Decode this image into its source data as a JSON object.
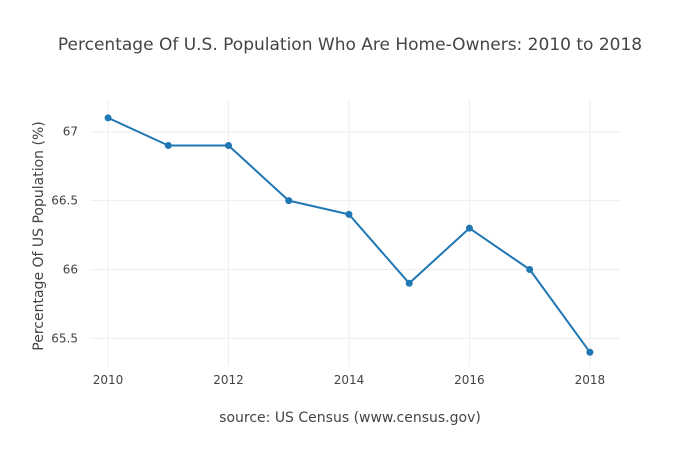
{
  "chart_data": {
    "type": "line",
    "title": "Percentage Of U.S. Population Who Are Home-Owners: 2010 to 2018",
    "xlabel": "source: US Census (www.census.gov)",
    "ylabel": "Percentage Of US Population (%)",
    "x": [
      2010,
      2011,
      2012,
      2013,
      2014,
      2015,
      2016,
      2017,
      2018
    ],
    "series": [
      {
        "values": [
          67.1,
          66.9,
          66.9,
          66.5,
          66.4,
          65.9,
          66.3,
          66.0,
          65.4
        ]
      }
    ],
    "xlim": [
      2009.7,
      2018.5
    ],
    "ylim": [
      65.3,
      67.23
    ],
    "x_ticks": [
      2010,
      2012,
      2014,
      2016,
      2018
    ],
    "x_tick_labels": [
      "2010",
      "2012",
      "2014",
      "2016",
      "2018"
    ],
    "y_ticks": [
      65.5,
      66,
      66.5,
      67
    ],
    "y_tick_labels": [
      "65.5",
      "66",
      "66.5",
      "67"
    ],
    "grid": true,
    "legend": "none",
    "colors": {
      "line": "#1f77b4",
      "grid": "#eeeeee",
      "text": "#444444"
    }
  }
}
